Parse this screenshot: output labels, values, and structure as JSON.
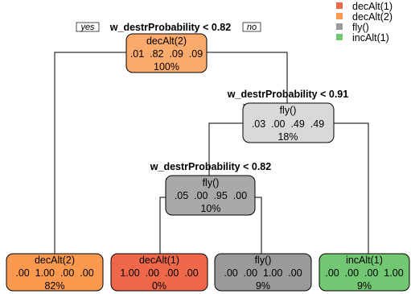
{
  "legend": [
    {
      "label": "decAlt(1)",
      "color": "#f0684a"
    },
    {
      "label": "decAlt(2)",
      "color": "#fb9a4f"
    },
    {
      "label": "fly()",
      "color": "#9a9a9a"
    },
    {
      "label": "incAlt(1)",
      "color": "#72c872"
    }
  ],
  "root_labels": {
    "yes": "yes",
    "no": "no"
  },
  "splits": {
    "root": "w_destrProbability < 0.82",
    "n2": "w_destrProbability < 0.91",
    "n3": "w_destrProbability < 0.82"
  },
  "nodes": {
    "root": {
      "cls": "decAlt(2)",
      "probs": ".01  .82  .09  .09",
      "pct": "100%",
      "color": "#fcab6c"
    },
    "n2": {
      "cls": "fly()",
      "probs": ".03  .00  .49  .49",
      "pct": "18%",
      "color": "#d9d9d9"
    },
    "n3": {
      "cls": "fly()",
      "probs": ".05  .00  .95  .00",
      "pct": "10%",
      "color": "#a9a9a9"
    },
    "leaf1": {
      "cls": "decAlt(2)",
      "probs": ".00  1.00  .00  .00",
      "pct": "82%",
      "color": "#fb9a4f"
    },
    "leaf2": {
      "cls": "decAlt(1)",
      "probs": "1.00  .00  .00  .00",
      "pct": "0%",
      "color": "#f0684a"
    },
    "leaf3": {
      "cls": "fly()",
      "probs": ".00  .00  1.00  .00",
      "pct": "9%",
      "color": "#9a9a9a"
    },
    "leaf4": {
      "cls": "incAlt(1)",
      "probs": ".00  .00  .00  1.00",
      "pct": "9%",
      "color": "#72c872"
    }
  }
}
